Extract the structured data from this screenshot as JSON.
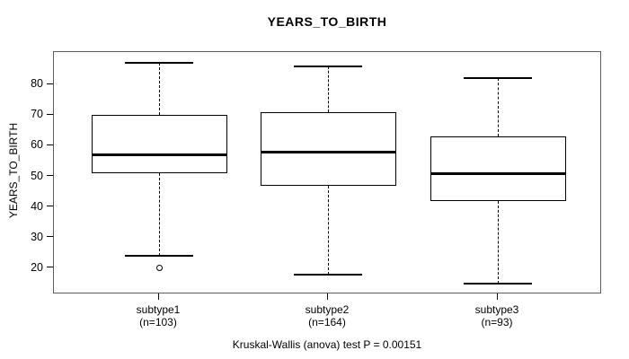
{
  "title": "YEARS_TO_BIRTH",
  "y_axis": {
    "label": "YEARS_TO_BIRTH"
  },
  "caption": "Kruskal-Wallis (anova) test P = 0.00151",
  "chart_data": {
    "type": "boxplot",
    "title": "YEARS_TO_BIRTH",
    "ylabel": "YEARS_TO_BIRTH",
    "xlabel": "",
    "ylim": [
      11.5,
      90.6
    ],
    "y_ticks": [
      20,
      30,
      40,
      50,
      60,
      70,
      80
    ],
    "grid": false,
    "annotation": "Kruskal-Wallis (anova) test P = 0.00151",
    "categories": [
      "subtype1",
      "subtype2",
      "subtype3"
    ],
    "groups": [
      {
        "label": "subtype1",
        "count_label": "(n=103)",
        "n": 103,
        "lower_whisker": 24,
        "q1": 51,
        "median": 57,
        "q3": 70,
        "upper_whisker": 87,
        "outliers": [
          20
        ]
      },
      {
        "label": "subtype2",
        "count_label": "(n=164)",
        "n": 164,
        "lower_whisker": 18,
        "q1": 47,
        "median": 58,
        "q3": 71,
        "upper_whisker": 86,
        "outliers": []
      },
      {
        "label": "subtype3",
        "count_label": "(n=93)",
        "n": 93,
        "lower_whisker": 15,
        "q1": 42,
        "median": 51,
        "q3": 63,
        "upper_whisker": 82,
        "outliers": []
      }
    ],
    "colors": {
      "line": "#000000",
      "frame": "#5e5e5e",
      "fill": "#ffffff",
      "background": "#ffffff"
    }
  }
}
